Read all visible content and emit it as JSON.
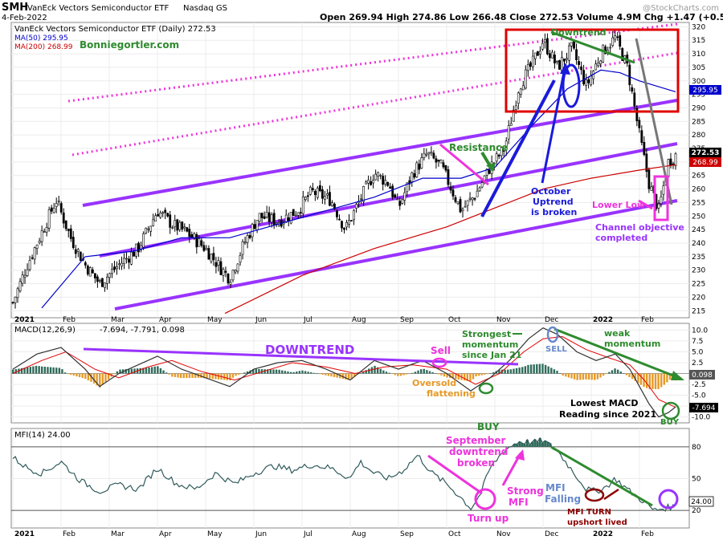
{
  "header": {
    "symbol": "SMH",
    "title": "VanEck Vectors Semiconductor ETF",
    "exchange": "Nasdaq GS",
    "date": "4-Feb-2022",
    "ohlc_text": "Open 269.94  High 274.86  Low 266.48  Close 272.53  Volume 4.9M  Chg +1.47 (+0.54%)",
    "watermark": "@StockCharts.com"
  },
  "price_panel": {
    "legend_title": "VanEck Vectors Semiconductor ETF (Daily) 272.53",
    "ma50_label": "MA(50) 295.95",
    "ma200_label": "MA(200) 268.99",
    "author": "Bonniegortler.com",
    "annotations": {
      "downtrend": "Downtrend",
      "resistance": "Resistance",
      "october": "October",
      "uptrend": "Uptrend",
      "broken": "is broken",
      "lower_low": "Lower Low",
      "channel1": "Channel objective",
      "channel2": "completed"
    },
    "price_tags": {
      "ma50": "295.95",
      "close": "272.53",
      "ma200": "268.99"
    }
  },
  "macd_panel": {
    "legend": "MACD(12,26,9)",
    "values": "-7.694, -7.791, 0.098",
    "annotations": {
      "downtrend": "DOWNTREND",
      "sell1": "Sell",
      "strongest1": "Strongest",
      "strongest2": "momentum",
      "strongest3": "since Jan 21",
      "sell2": "SELL",
      "weak1": "weak",
      "weak2": "momentum",
      "oversold1": "Oversold",
      "oversold2": "flattening",
      "lowest1": "Lowest MACD",
      "lowest2": "Reading since 2021",
      "buy": "BUY"
    },
    "tags": {
      "hist": "0.098",
      "macd": "-7.694"
    }
  },
  "mfi_panel": {
    "legend": "MFI(14) 24.00",
    "annotations": {
      "buy": "BUY",
      "sept1": "September",
      "sept2": "downtrend",
      "sept3": "broken",
      "strong1": "Strong",
      "strong2": "MFI",
      "turn": "Turn up",
      "falling1": "MFI",
      "falling2": "Falling",
      "turnlived1": "MFI TURN",
      "turnlived2": "upshort lived"
    },
    "tag": "24.00"
  },
  "chart_data": [
    {
      "type": "candlestick",
      "x_tick_labels": [
        "2021",
        "Feb",
        "Mar",
        "Apr",
        "May",
        "Jun",
        "Jul",
        "Aug",
        "Sep",
        "Oct",
        "Nov",
        "Dec",
        "2022",
        "Feb"
      ],
      "ylim": [
        213,
        321
      ],
      "y_ticks": [
        215,
        220,
        225,
        230,
        235,
        240,
        245,
        250,
        255,
        260,
        265,
        270,
        275,
        280,
        285,
        290,
        295,
        300,
        305,
        310,
        315,
        320
      ],
      "close_path": [
        {
          "t": 0.0,
          "v": 218
        },
        {
          "t": 0.3,
          "v": 232
        },
        {
          "t": 0.6,
          "v": 244
        },
        {
          "t": 0.9,
          "v": 256
        },
        {
          "t": 1.2,
          "v": 242
        },
        {
          "t": 1.5,
          "v": 232
        },
        {
          "t": 1.8,
          "v": 225
        },
        {
          "t": 2.2,
          "v": 232
        },
        {
          "t": 2.6,
          "v": 238
        },
        {
          "t": 3.0,
          "v": 252
        },
        {
          "t": 3.3,
          "v": 247
        },
        {
          "t": 3.6,
          "v": 244
        },
        {
          "t": 4.0,
          "v": 238
        },
        {
          "t": 4.3,
          "v": 231
        },
        {
          "t": 4.5,
          "v": 227
        },
        {
          "t": 4.8,
          "v": 240
        },
        {
          "t": 5.1,
          "v": 250
        },
        {
          "t": 5.5,
          "v": 248
        },
        {
          "t": 5.9,
          "v": 252
        },
        {
          "t": 6.2,
          "v": 259
        },
        {
          "t": 6.6,
          "v": 256
        },
        {
          "t": 6.9,
          "v": 245
        },
        {
          "t": 7.2,
          "v": 256
        },
        {
          "t": 7.5,
          "v": 266
        },
        {
          "t": 7.8,
          "v": 262
        },
        {
          "t": 8.0,
          "v": 253
        },
        {
          "t": 8.3,
          "v": 266
        },
        {
          "t": 8.6,
          "v": 273
        },
        {
          "t": 8.9,
          "v": 268
        },
        {
          "t": 9.1,
          "v": 260
        },
        {
          "t": 9.3,
          "v": 252
        },
        {
          "t": 9.6,
          "v": 258
        },
        {
          "t": 9.9,
          "v": 268
        },
        {
          "t": 10.2,
          "v": 275
        },
        {
          "t": 10.5,
          "v": 298
        },
        {
          "t": 10.8,
          "v": 307
        },
        {
          "t": 11.0,
          "v": 315
        },
        {
          "t": 11.3,
          "v": 305
        },
        {
          "t": 11.6,
          "v": 312
        },
        {
          "t": 11.9,
          "v": 298
        },
        {
          "t": 12.2,
          "v": 310
        },
        {
          "t": 12.5,
          "v": 316
        },
        {
          "t": 12.75,
          "v": 305
        },
        {
          "t": 13.0,
          "v": 280
        },
        {
          "t": 13.2,
          "v": 262
        },
        {
          "t": 13.4,
          "v": 252
        },
        {
          "t": 13.6,
          "v": 270
        },
        {
          "t": 13.75,
          "v": 272.53
        }
      ],
      "ma50_path": [
        {
          "t": 0.6,
          "v": 216
        },
        {
          "t": 1.5,
          "v": 235
        },
        {
          "t": 2.5,
          "v": 237
        },
        {
          "t": 3.5,
          "v": 242
        },
        {
          "t": 4.5,
          "v": 242
        },
        {
          "t": 5.5,
          "v": 247
        },
        {
          "t": 6.5,
          "v": 252
        },
        {
          "t": 7.5,
          "v": 257
        },
        {
          "t": 8.5,
          "v": 264
        },
        {
          "t": 9.3,
          "v": 264
        },
        {
          "t": 10.0,
          "v": 268
        },
        {
          "t": 10.8,
          "v": 284
        },
        {
          "t": 11.5,
          "v": 297
        },
        {
          "t": 12.2,
          "v": 304
        },
        {
          "t": 12.6,
          "v": 303
        },
        {
          "t": 13.0,
          "v": 300
        },
        {
          "t": 13.75,
          "v": 295.95
        }
      ],
      "ma200_path": [
        {
          "t": 4.4,
          "v": 214
        },
        {
          "t": 6.0,
          "v": 228
        },
        {
          "t": 7.5,
          "v": 238
        },
        {
          "t": 9.0,
          "v": 246
        },
        {
          "t": 10.0,
          "v": 253
        },
        {
          "t": 11.0,
          "v": 260
        },
        {
          "t": 12.0,
          "v": 264
        },
        {
          "t": 13.0,
          "v": 267
        },
        {
          "t": 13.75,
          "v": 268.99
        }
      ],
      "series": [
        {
          "name": "MA(50)",
          "last": 295.95
        },
        {
          "name": "MA(200)",
          "last": 268.99
        }
      ],
      "close": 272.53,
      "colors": {
        "candle": "#000000",
        "ma50": "#0000cc",
        "ma200": "#cc0000",
        "channel": "#9933ff",
        "dotted": "#ee33dd",
        "box": "#e00000",
        "annot_green": "#2e8b2e",
        "annot_blue": "#1a1adb",
        "annot_magenta": "#ee33dd"
      }
    },
    {
      "type": "line",
      "ylim": [
        -11,
        11
      ],
      "y_tick_labels": [
        "10.0",
        "7.5",
        "5.0",
        "2.5",
        "-2.5",
        "-5.0",
        "-7.5",
        "-10.0"
      ],
      "y_ticks": [
        10,
        7.5,
        5,
        2.5,
        -2.5,
        -5,
        -7.5,
        -10
      ],
      "series": [
        {
          "name": "MACD",
          "last": -7.694,
          "path": [
            {
              "t": 0.0,
              "v": 1
            },
            {
              "t": 0.5,
              "v": 4.5
            },
            {
              "t": 1.0,
              "v": 6
            },
            {
              "t": 1.5,
              "v": 1
            },
            {
              "t": 1.8,
              "v": -3
            },
            {
              "t": 2.2,
              "v": 0
            },
            {
              "t": 2.6,
              "v": 2
            },
            {
              "t": 3.0,
              "v": 4
            },
            {
              "t": 3.5,
              "v": 1
            },
            {
              "t": 4.0,
              "v": -1
            },
            {
              "t": 4.5,
              "v": -3
            },
            {
              "t": 5.0,
              "v": 1
            },
            {
              "t": 5.5,
              "v": 2.5
            },
            {
              "t": 6.0,
              "v": 3
            },
            {
              "t": 6.5,
              "v": 1
            },
            {
              "t": 7.0,
              "v": -1.5
            },
            {
              "t": 7.5,
              "v": 3
            },
            {
              "t": 8.0,
              "v": 1
            },
            {
              "t": 8.5,
              "v": 3
            },
            {
              "t": 9.0,
              "v": 0
            },
            {
              "t": 9.5,
              "v": -4
            },
            {
              "t": 9.9,
              "v": -1
            },
            {
              "t": 10.3,
              "v": 3
            },
            {
              "t": 10.7,
              "v": 8
            },
            {
              "t": 11.0,
              "v": 10.5
            },
            {
              "t": 11.3,
              "v": 9
            },
            {
              "t": 11.7,
              "v": 5
            },
            {
              "t": 12.1,
              "v": 3
            },
            {
              "t": 12.5,
              "v": 4.5
            },
            {
              "t": 12.8,
              "v": 1
            },
            {
              "t": 13.0,
              "v": -3
            },
            {
              "t": 13.2,
              "v": -7
            },
            {
              "t": 13.4,
              "v": -10
            },
            {
              "t": 13.6,
              "v": -9
            },
            {
              "t": 13.75,
              "v": -7.694
            }
          ]
        },
        {
          "name": "Signal",
          "last": -7.791,
          "path": [
            {
              "t": 0.0,
              "v": 0
            },
            {
              "t": 0.6,
              "v": 3
            },
            {
              "t": 1.1,
              "v": 5
            },
            {
              "t": 1.7,
              "v": 1
            },
            {
              "t": 2.2,
              "v": -1
            },
            {
              "t": 2.8,
              "v": 1.5
            },
            {
              "t": 3.3,
              "v": 3
            },
            {
              "t": 3.9,
              "v": 0.5
            },
            {
              "t": 4.6,
              "v": -1.5
            },
            {
              "t": 5.2,
              "v": 0.5
            },
            {
              "t": 5.8,
              "v": 2.5
            },
            {
              "t": 6.5,
              "v": 1.5
            },
            {
              "t": 7.1,
              "v": 0
            },
            {
              "t": 7.7,
              "v": 1.5
            },
            {
              "t": 8.3,
              "v": 2
            },
            {
              "t": 9.0,
              "v": 1
            },
            {
              "t": 9.6,
              "v": -2.5
            },
            {
              "t": 10.1,
              "v": 0
            },
            {
              "t": 10.6,
              "v": 5
            },
            {
              "t": 11.0,
              "v": 8
            },
            {
              "t": 11.4,
              "v": 8.5
            },
            {
              "t": 11.9,
              "v": 5.5
            },
            {
              "t": 12.4,
              "v": 3.5
            },
            {
              "t": 12.8,
              "v": 2
            },
            {
              "t": 13.1,
              "v": -1.5
            },
            {
              "t": 13.4,
              "v": -6
            },
            {
              "t": 13.75,
              "v": -7.791
            }
          ]
        },
        {
          "name": "Histogram",
          "last": 0.098
        }
      ]
    },
    {
      "type": "line",
      "ylim": [
        5,
        95
      ],
      "y_tick_labels": [
        "80",
        "50",
        "20"
      ],
      "y_ticks": [
        80,
        50,
        20
      ],
      "series": [
        {
          "name": "MFI(14)",
          "last": 24.0,
          "path": [
            {
              "t": 0.0,
              "v": 70
            },
            {
              "t": 0.3,
              "v": 60
            },
            {
              "t": 0.6,
              "v": 55
            },
            {
              "t": 1.0,
              "v": 66
            },
            {
              "t": 1.4,
              "v": 48
            },
            {
              "t": 1.8,
              "v": 38
            },
            {
              "t": 2.2,
              "v": 44
            },
            {
              "t": 2.6,
              "v": 40
            },
            {
              "t": 3.0,
              "v": 60
            },
            {
              "t": 3.4,
              "v": 45
            },
            {
              "t": 3.8,
              "v": 40
            },
            {
              "t": 4.2,
              "v": 55
            },
            {
              "t": 4.6,
              "v": 45
            },
            {
              "t": 5.0,
              "v": 55
            },
            {
              "t": 5.4,
              "v": 62
            },
            {
              "t": 5.8,
              "v": 58
            },
            {
              "t": 6.2,
              "v": 63
            },
            {
              "t": 6.6,
              "v": 60
            },
            {
              "t": 7.0,
              "v": 50
            },
            {
              "t": 7.2,
              "v": 66
            },
            {
              "t": 7.5,
              "v": 55
            },
            {
              "t": 7.8,
              "v": 50
            },
            {
              "t": 8.1,
              "v": 58
            },
            {
              "t": 8.4,
              "v": 72
            },
            {
              "t": 8.7,
              "v": 55
            },
            {
              "t": 9.0,
              "v": 45
            },
            {
              "t": 9.3,
              "v": 32
            },
            {
              "t": 9.5,
              "v": 22
            },
            {
              "t": 9.7,
              "v": 35
            },
            {
              "t": 9.9,
              "v": 60
            },
            {
              "t": 10.2,
              "v": 77
            },
            {
              "t": 10.5,
              "v": 85
            },
            {
              "t": 10.8,
              "v": 84
            },
            {
              "t": 11.0,
              "v": 86
            },
            {
              "t": 11.3,
              "v": 76
            },
            {
              "t": 11.6,
              "v": 58
            },
            {
              "t": 11.9,
              "v": 40
            },
            {
              "t": 12.1,
              "v": 38
            },
            {
              "t": 12.3,
              "v": 42
            },
            {
              "t": 12.5,
              "v": 50
            },
            {
              "t": 12.8,
              "v": 38
            },
            {
              "t": 13.1,
              "v": 28
            },
            {
              "t": 13.3,
              "v": 20
            },
            {
              "t": 13.5,
              "v": 22
            },
            {
              "t": 13.75,
              "v": 24
            }
          ]
        }
      ]
    }
  ]
}
